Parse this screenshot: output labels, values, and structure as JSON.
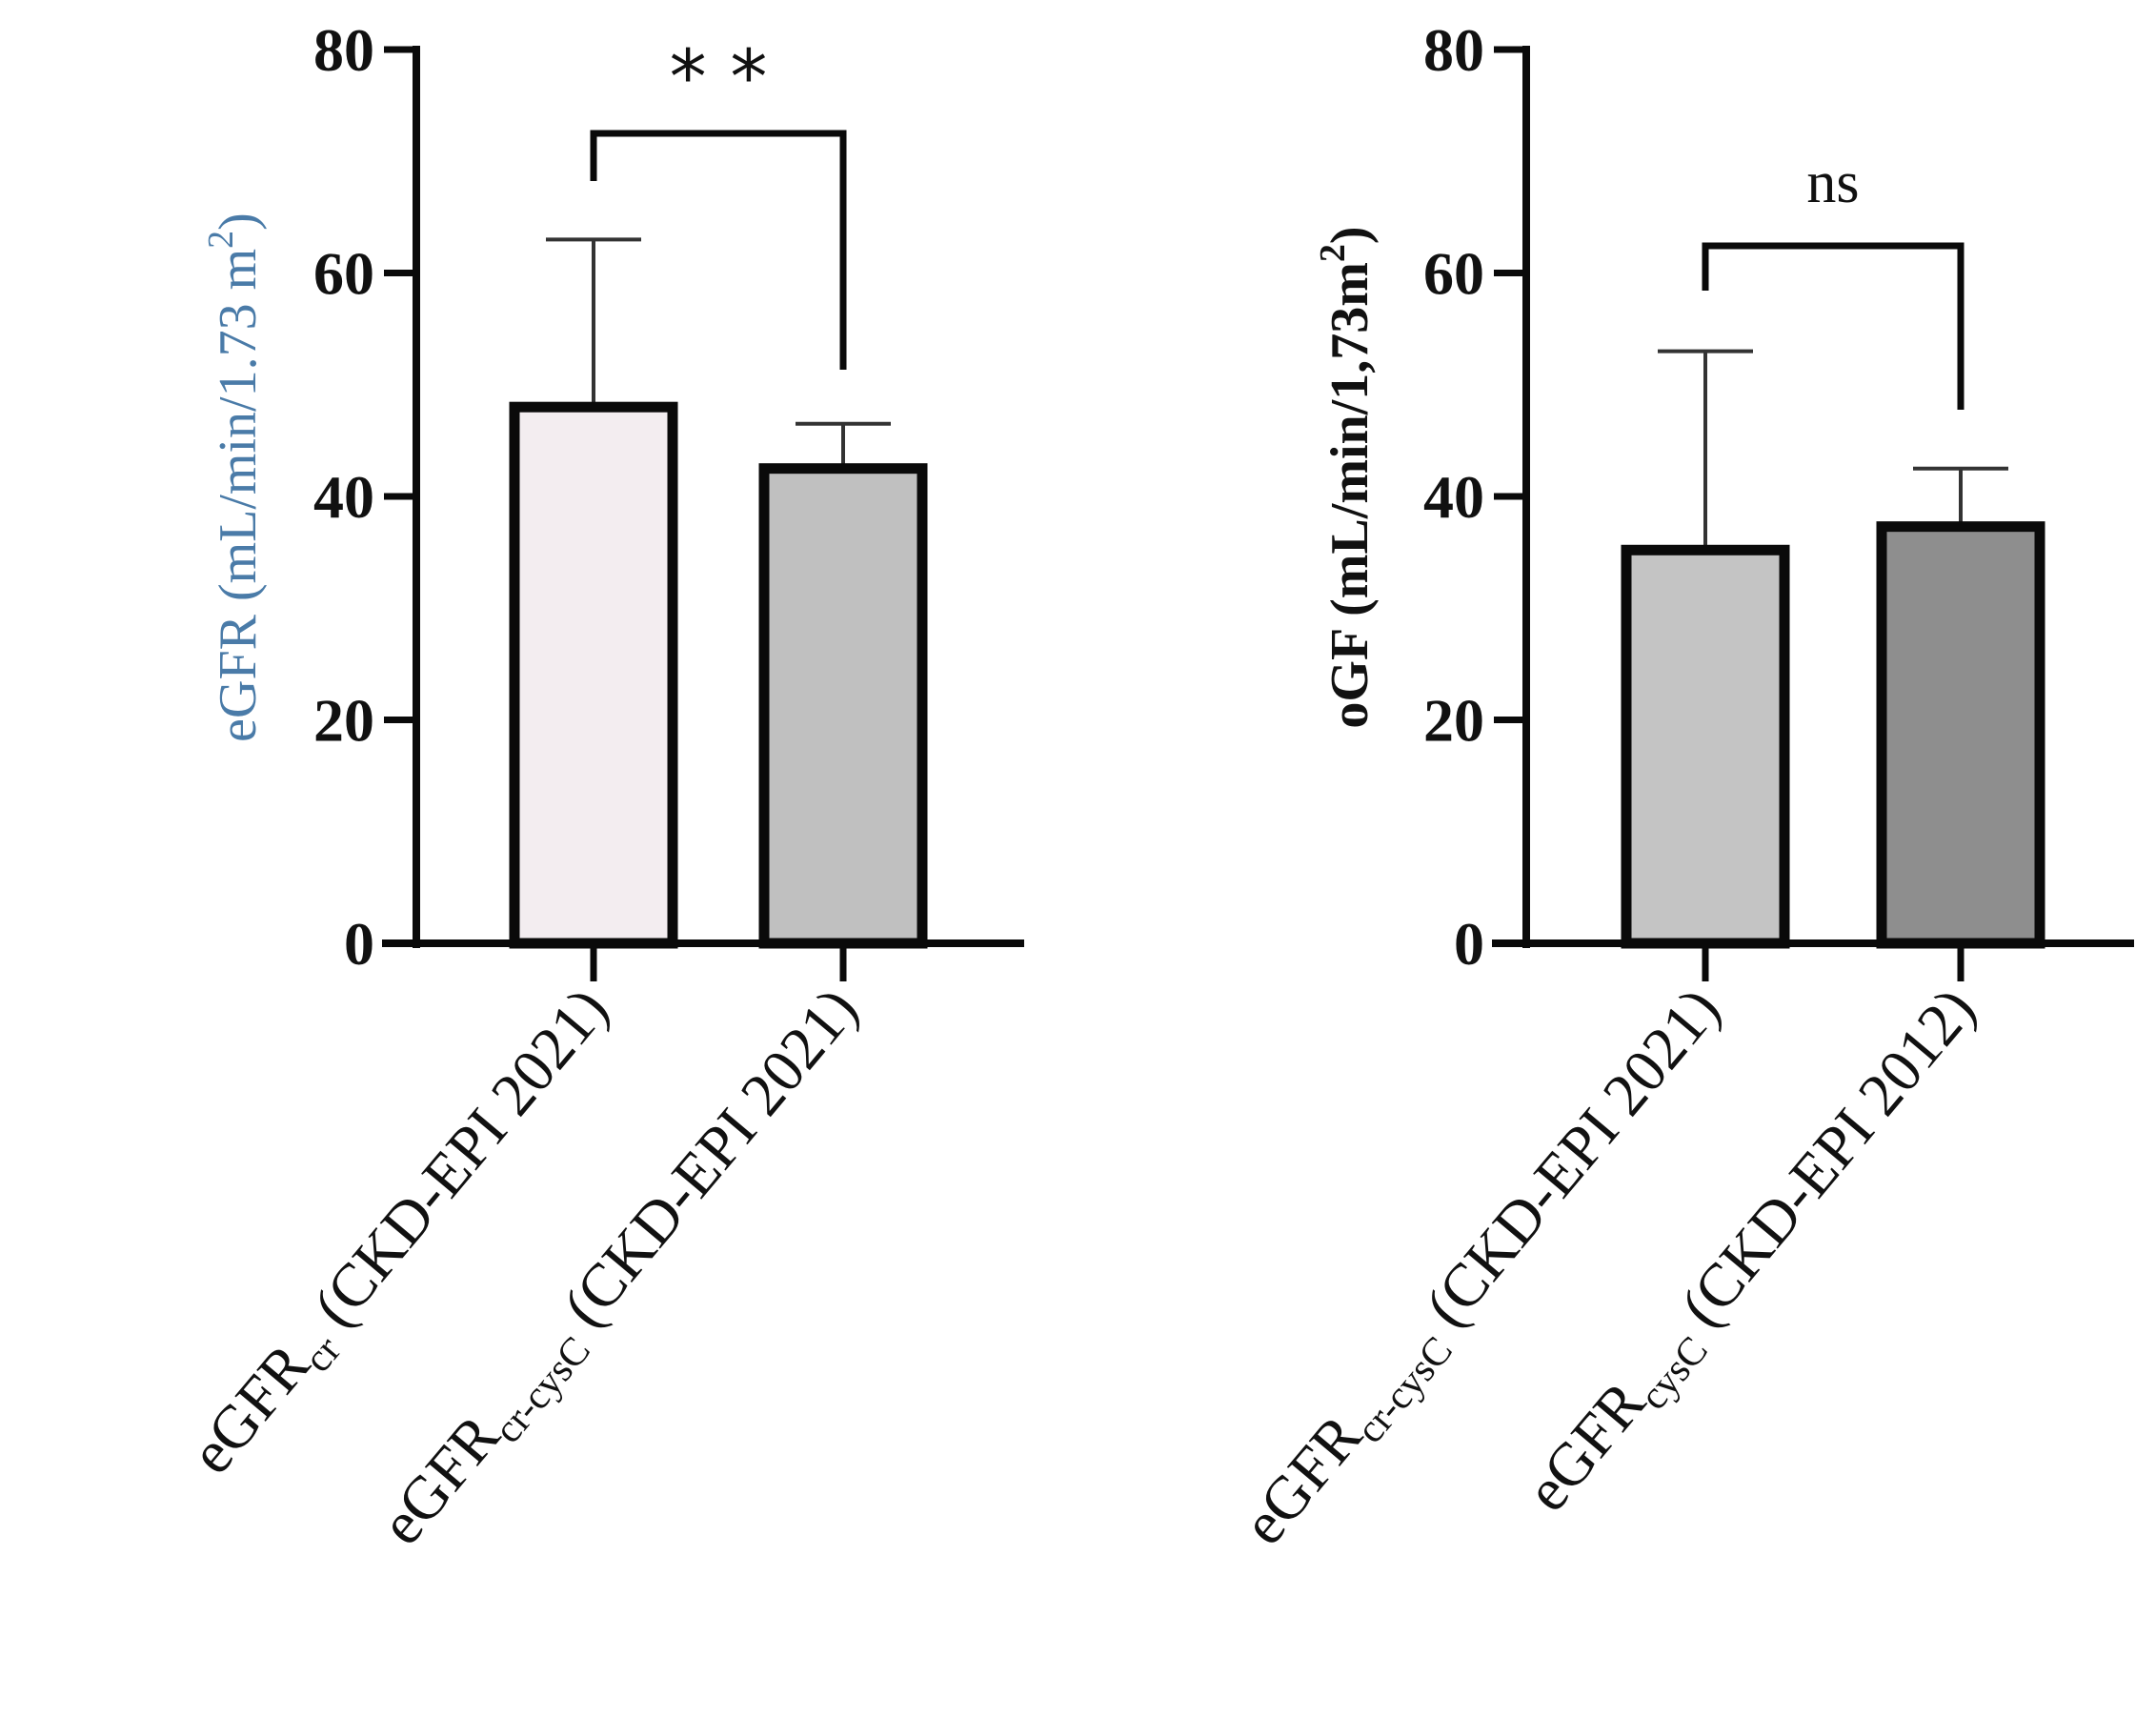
{
  "chart_data": [
    {
      "type": "bar",
      "ylabel": {
        "main": "eGFR (mL/min/1.73 m",
        "sup": "2",
        "close": ")",
        "color": "#4a7ba8"
      },
      "ylim": [
        0,
        80
      ],
      "yticks": [
        "0",
        "20",
        "40",
        "60",
        "80"
      ],
      "categories": [
        {
          "main": "eGFR",
          "sub": "cr",
          "rest": " (CKD-EPI 2021)"
        },
        {
          "main": "eGFR",
          "sub": "cr-cysC",
          "rest": " (CKD-EPI 2021)"
        }
      ],
      "values": [
        48,
        42.5
      ],
      "error_upper": [
        63,
        46.5
      ],
      "bar_colors": [
        "#f3edf0",
        "#c0c0c0"
      ],
      "significance": "* *"
    },
    {
      "type": "bar",
      "ylabel": {
        "main": "oGF (mL/min/1,73m",
        "sup": "2",
        "close": ")",
        "color": "#111111"
      },
      "ylim": [
        0,
        80
      ],
      "yticks": [
        "0",
        "20",
        "40",
        "60",
        "80"
      ],
      "categories": [
        {
          "main": "eGFR",
          "sub": "cr-cysC",
          "rest": " (CKD-EPI 2021)"
        },
        {
          "main": "eGFR",
          "sub": "cysC",
          "rest": " (CKD-EPI 2012)"
        }
      ],
      "values": [
        35.2,
        37.3
      ],
      "error_upper": [
        53,
        42.5
      ],
      "bar_colors": [
        "#c4c4c4",
        "#8e8e8e"
      ],
      "significance": "ns"
    }
  ]
}
